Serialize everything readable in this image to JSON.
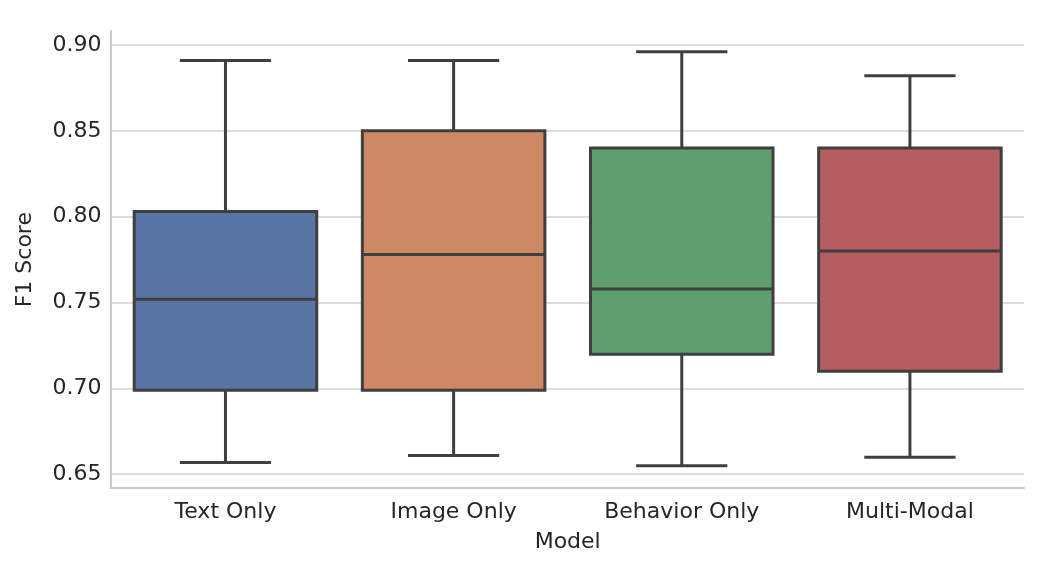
{
  "chart_data": {
    "type": "box",
    "xlabel": "Model",
    "ylabel": "F1 Score",
    "categories": [
      "Text Only",
      "Image Only",
      "Behavior Only",
      "Multi-Modal"
    ],
    "colors": [
      "#5875a4",
      "#cc8963",
      "#5f9e6e",
      "#b55d60"
    ],
    "boxes": [
      {
        "low": 0.657,
        "q1": 0.699,
        "median": 0.752,
        "q3": 0.803,
        "high": 0.891
      },
      {
        "low": 0.661,
        "q1": 0.699,
        "median": 0.778,
        "q3": 0.85,
        "high": 0.891
      },
      {
        "low": 0.655,
        "q1": 0.72,
        "median": 0.758,
        "q3": 0.84,
        "high": 0.896
      },
      {
        "low": 0.66,
        "q1": 0.71,
        "median": 0.78,
        "q3": 0.84,
        "high": 0.882
      }
    ],
    "ylim": [
      0.642,
      0.908
    ],
    "yticks": [
      0.65,
      {
        "value": 0.7,
        "label": "0.70"
      },
      0.75,
      {
        "value": 0.8,
        "label": "0.80"
      },
      0.85,
      {
        "value": 0.9,
        "label": "0.90"
      }
    ],
    "grid": "y"
  }
}
